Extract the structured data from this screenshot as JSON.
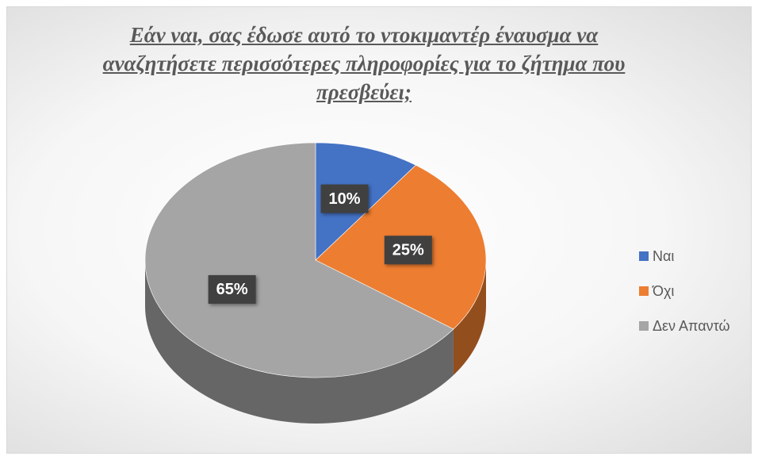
{
  "chart_data": {
    "type": "pie",
    "title": "Εάν ναι, σας έδωσε αυτό το ντοκιμαντέρ έναυσμα να αναζητήσετε περισσότερες πληροφορίες για το ζήτημα που πρεσβεύει;",
    "categories": [
      "Ναι",
      "Όχι",
      "Δεν Απαντώ"
    ],
    "values": [
      10,
      25,
      65
    ],
    "value_labels": [
      "10%",
      "25%",
      "65%"
    ],
    "colors": [
      "#4472c4",
      "#ed7d31",
      "#a5a5a5"
    ],
    "legend": "right"
  }
}
